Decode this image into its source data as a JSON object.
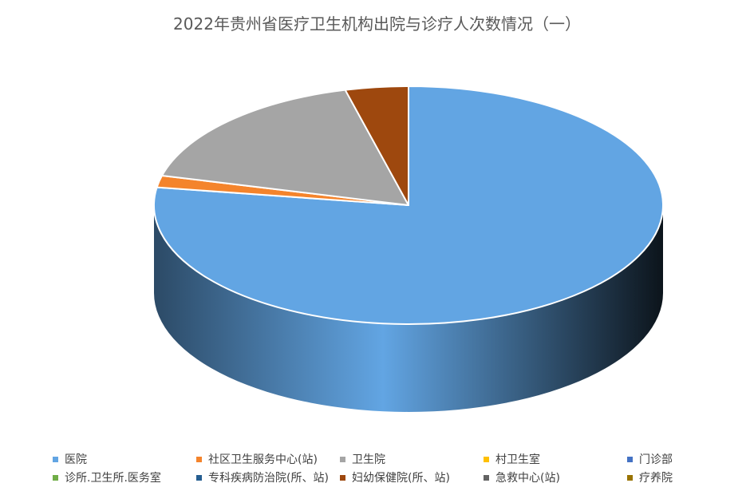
{
  "chart_data": {
    "type": "pie",
    "title": "2022年贵州省医疗卫生机构出院与诊疗人次数情况（一）",
    "legend_position": "bottom",
    "style": "3d",
    "categories": [
      "医院",
      "社区卫生服务中心(站)",
      "卫生院",
      "村卫生室",
      "门诊部",
      "诊所.卫生所.医务室",
      "专科疾病防治院(所、站)",
      "妇幼保健院(所、站)",
      "急救中心(站)",
      "疗养院"
    ],
    "values": [
      77.4,
      1.6,
      17.0,
      0.0,
      0.0,
      0.0,
      0.0,
      4.0,
      0.0,
      0.0
    ],
    "colors": [
      "#62a5e3",
      "#f4842c",
      "#a5a5a5",
      "#ffc000",
      "#4472c4",
      "#70ad47",
      "#255e91",
      "#9e480e",
      "#636363",
      "#997300"
    ]
  }
}
